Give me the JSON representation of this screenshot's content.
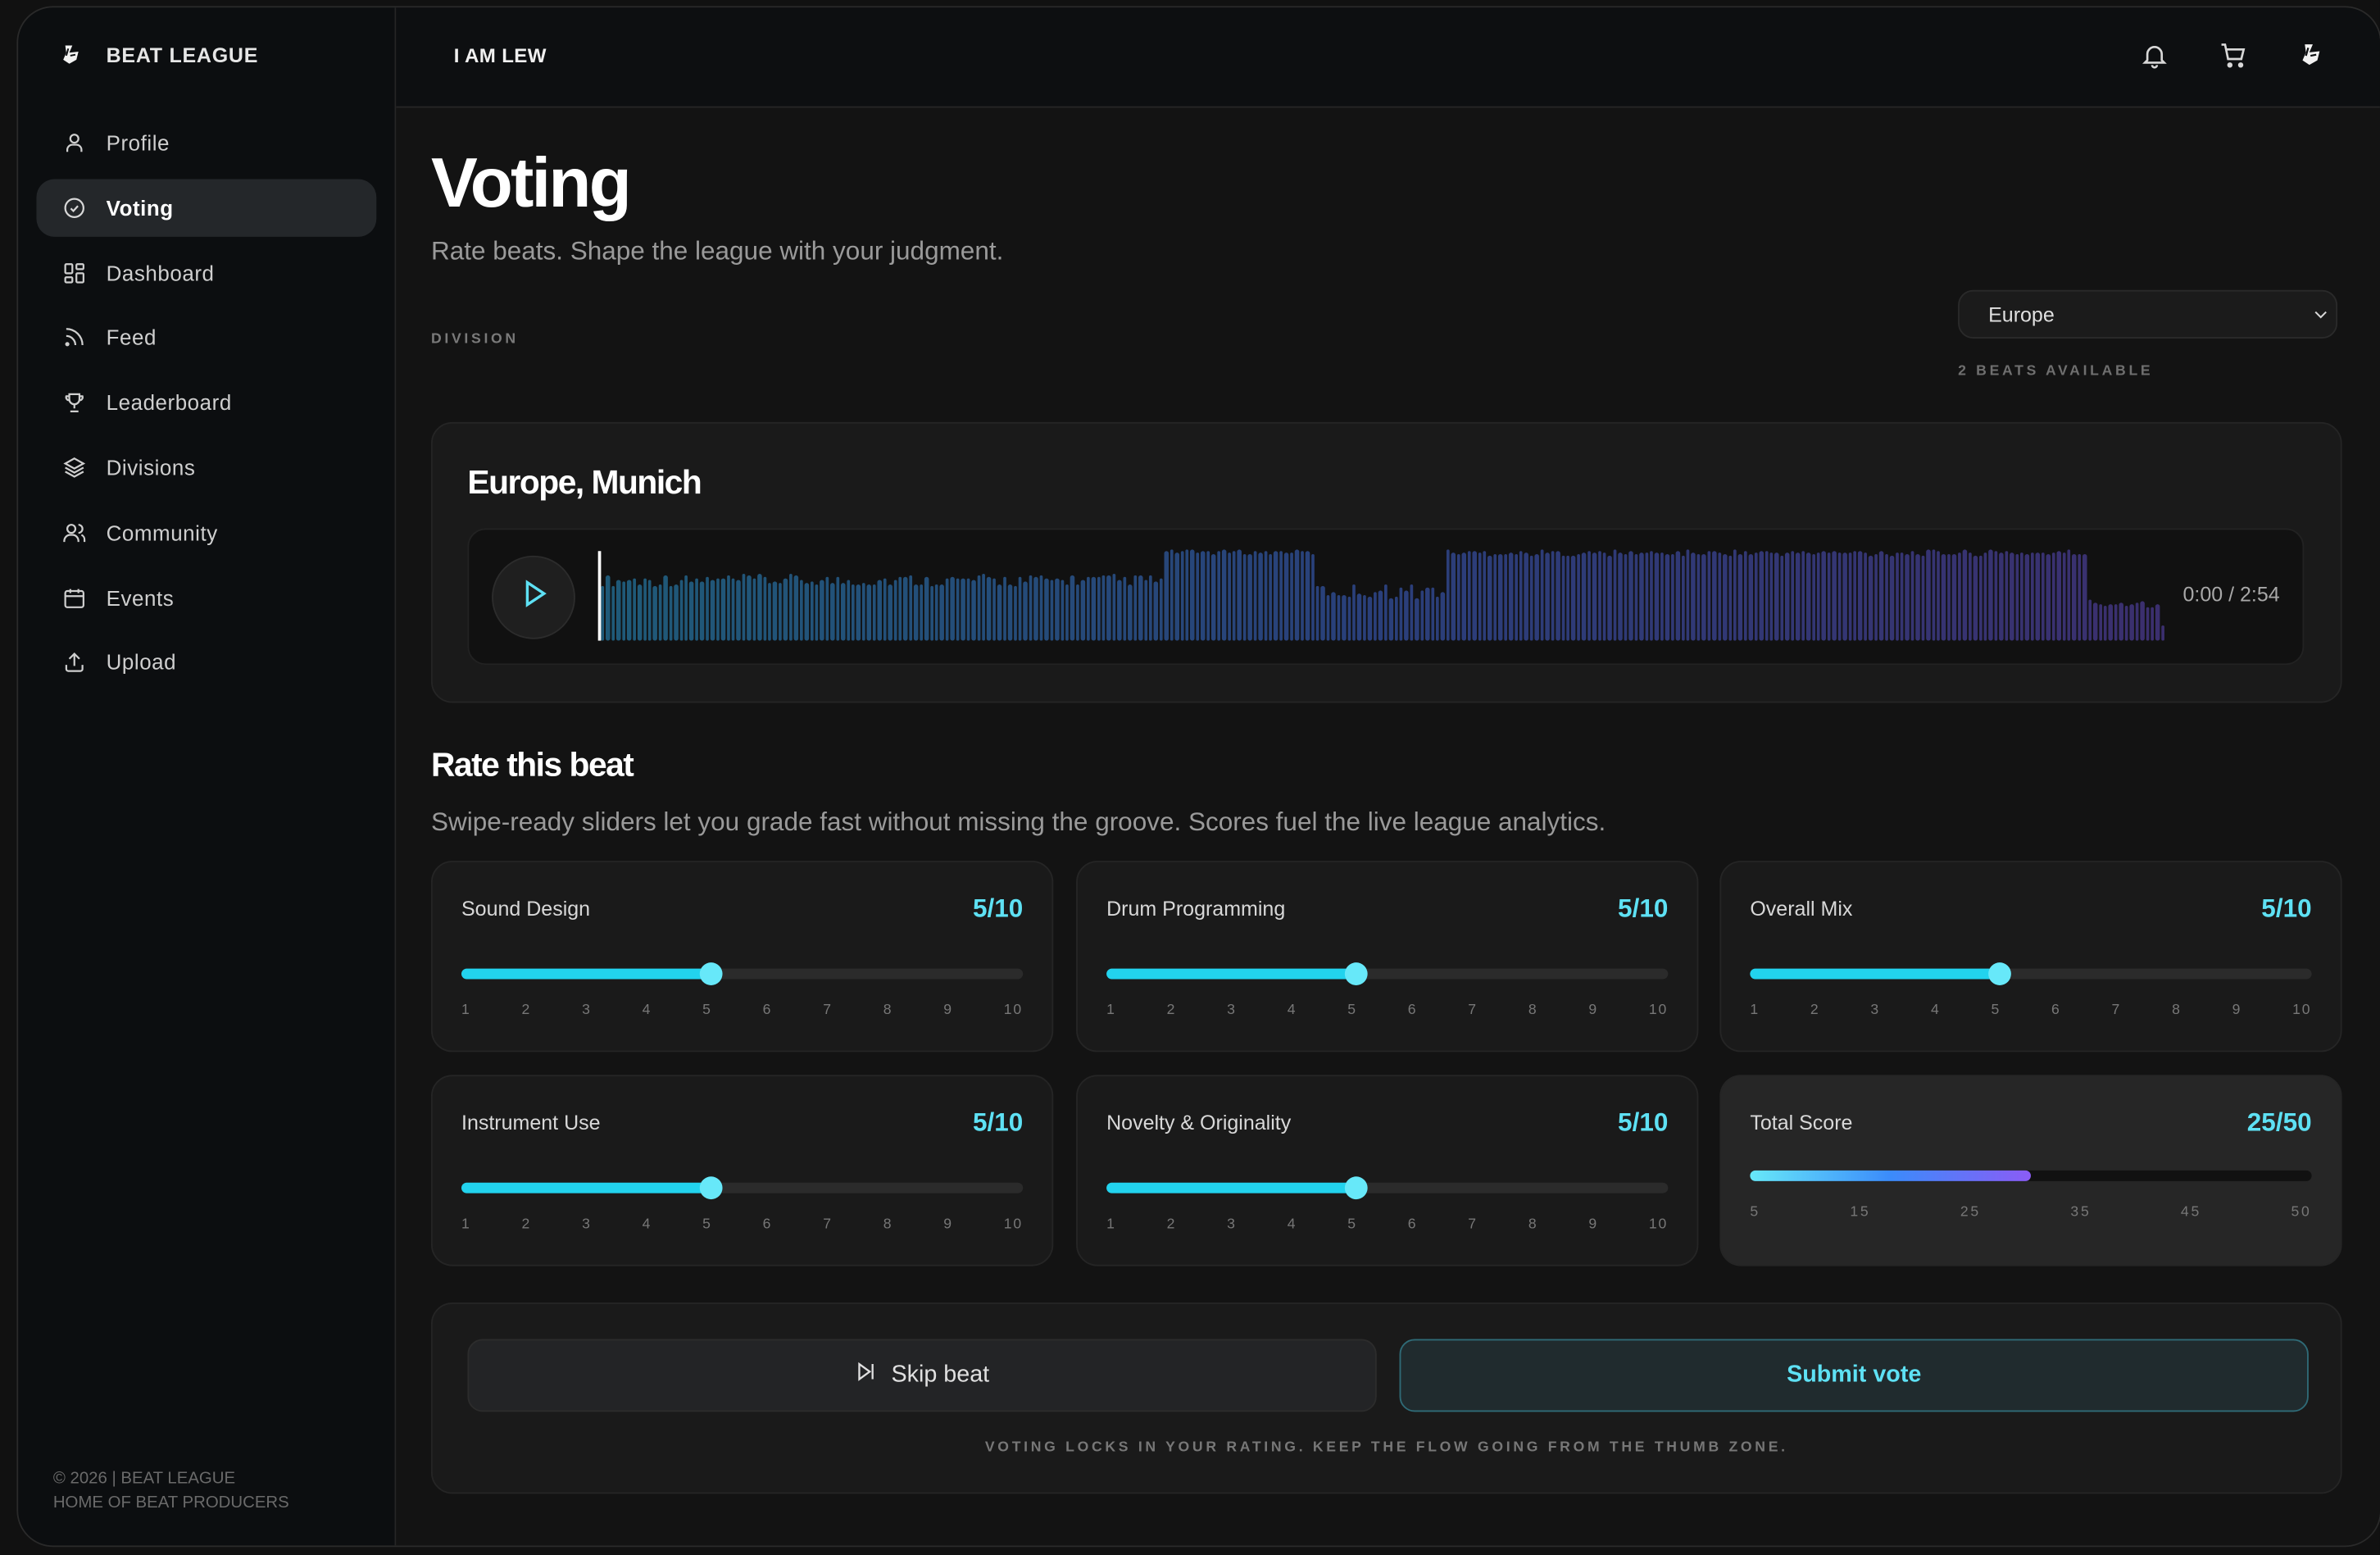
{
  "brand": {
    "name": "BEAT LEAGUE",
    "logo_icon": "beat-league-logo-icon"
  },
  "sidebar": {
    "items": [
      {
        "label": "Profile",
        "icon": "user-icon",
        "active": false
      },
      {
        "label": "Voting",
        "icon": "check-circle-icon",
        "active": true
      },
      {
        "label": "Dashboard",
        "icon": "dashboard-grid-icon",
        "active": false
      },
      {
        "label": "Feed",
        "icon": "rss-feed-icon",
        "active": false
      },
      {
        "label": "Leaderboard",
        "icon": "trophy-icon",
        "active": false
      },
      {
        "label": "Divisions",
        "icon": "layers-icon",
        "active": false
      },
      {
        "label": "Community",
        "icon": "users-icon",
        "active": false
      },
      {
        "label": "Events",
        "icon": "calendar-icon",
        "active": false
      },
      {
        "label": "Upload",
        "icon": "upload-icon",
        "active": false
      }
    ],
    "footer_line1": "© 2026 | BEAT LEAGUE",
    "footer_line2": "HOME OF BEAT PRODUCERS"
  },
  "topbar": {
    "username": "I AM LEW",
    "icons": [
      "bell-icon",
      "cart-icon",
      "beat-league-logo-icon"
    ]
  },
  "page": {
    "title": "Voting",
    "subtitle": "Rate beats. Shape the league with your judgment."
  },
  "division": {
    "label": "DIVISION",
    "selected": "Europe",
    "beats_available": "2 BEATS AVAILABLE"
  },
  "player": {
    "title": "Europe, Munich",
    "time": "0:00 / 2:54",
    "progress_pct": 0,
    "colors": {
      "start": "#1f5a78",
      "mid": "#2a3f7a",
      "end": "#3b2f6e"
    }
  },
  "rating": {
    "title": "Rate this beat",
    "subtitle": "Swipe-ready sliders let you grade fast without missing the groove. Scores fuel the live league analytics.",
    "scale_ticks": [
      "1",
      "2",
      "3",
      "4",
      "5",
      "6",
      "7",
      "8",
      "9",
      "10"
    ],
    "criteria": [
      {
        "label": "Sound Design",
        "value": 5,
        "max": 10,
        "display": "5/10"
      },
      {
        "label": "Drum Programming",
        "value": 5,
        "max": 10,
        "display": "5/10"
      },
      {
        "label": "Overall Mix",
        "value": 5,
        "max": 10,
        "display": "5/10"
      },
      {
        "label": "Instrument Use",
        "value": 5,
        "max": 10,
        "display": "5/10"
      },
      {
        "label": "Novelty & Originality",
        "value": 5,
        "max": 10,
        "display": "5/10"
      }
    ],
    "total": {
      "label": "Total Score",
      "value": 25,
      "max": 50,
      "display": "25/50",
      "ticks": [
        "5",
        "15",
        "25",
        "35",
        "45",
        "50"
      ]
    }
  },
  "actions": {
    "skip_label": "Skip beat",
    "submit_label": "Submit vote",
    "note": "VOTING LOCKS IN YOUR RATING. KEEP THE FLOW GOING FROM THE THUMB ZONE."
  },
  "colors": {
    "accent": "#22d3ee",
    "accent_text": "#5ee1f4",
    "background": "#131313",
    "sidebar": "#0c0e10",
    "card": "#1a1a1a"
  }
}
